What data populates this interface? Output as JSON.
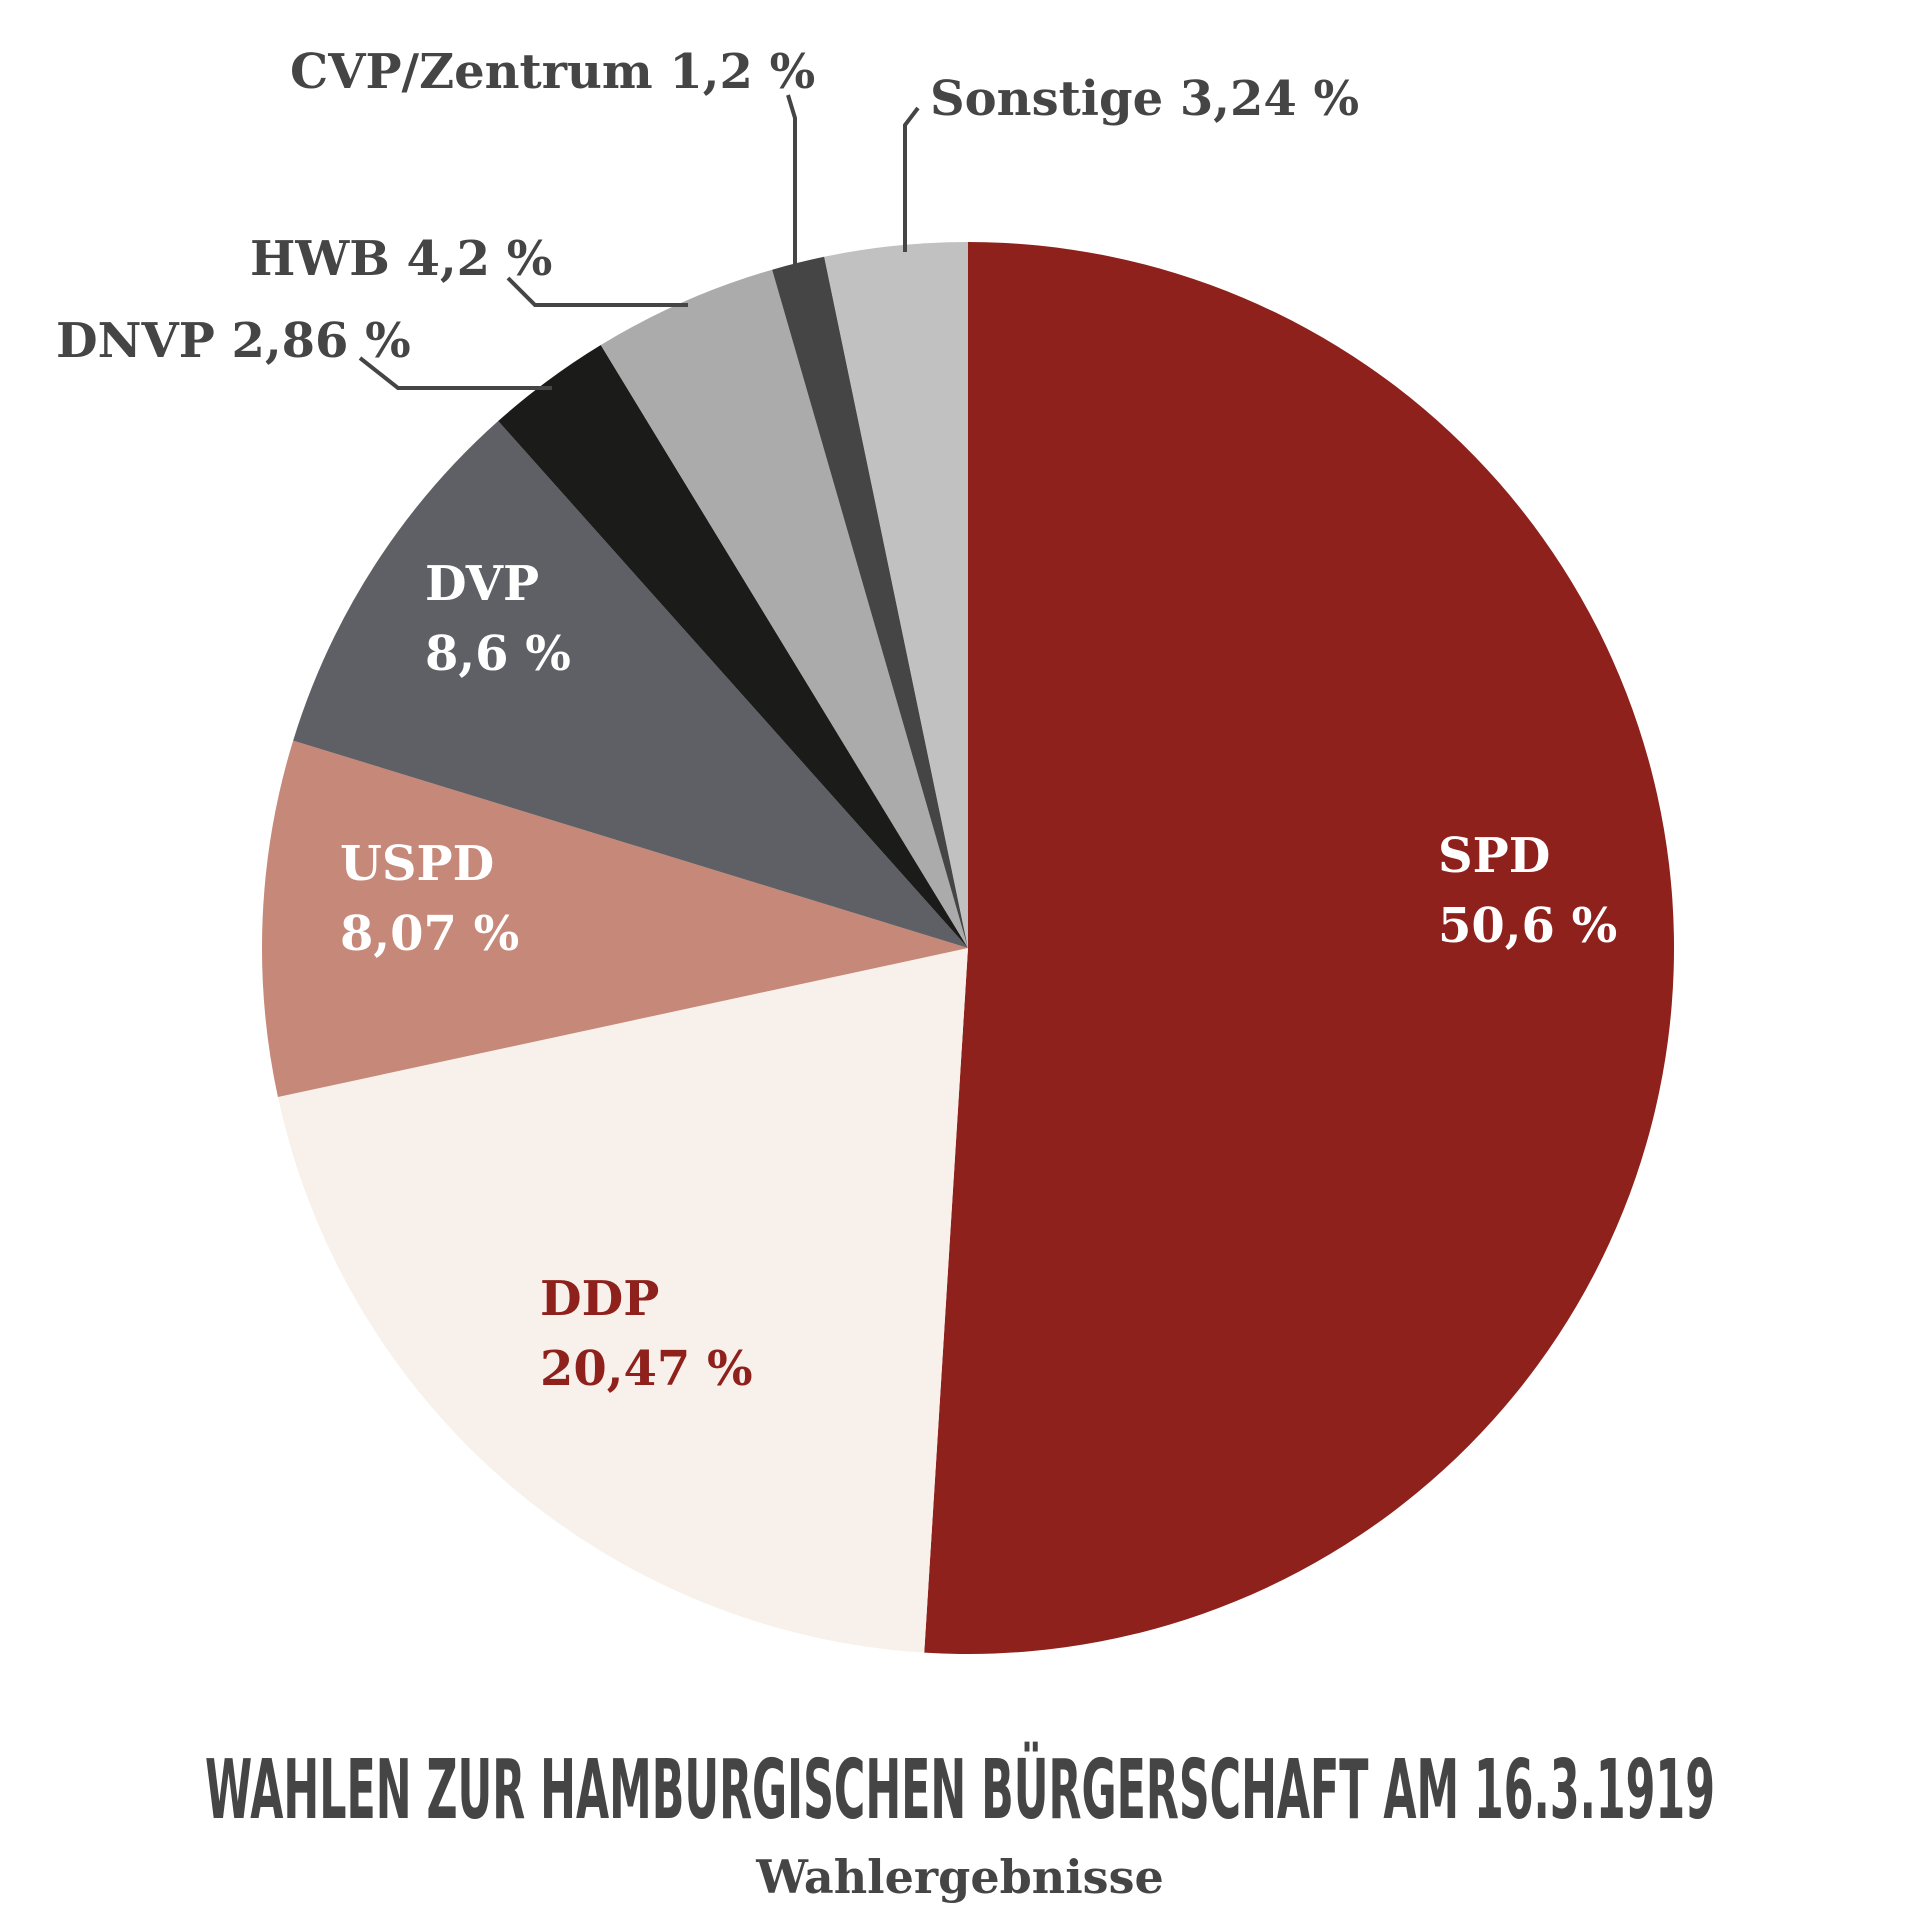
{
  "chart_data": {
    "type": "pie",
    "title": "WAHLEN ZUR HAMBURGISCHEN BÜRGERSCHAFT AM 16.3.1919",
    "subtitle": "Wahlergebnisse",
    "slices": [
      {
        "name": "SPD",
        "value": 50.6,
        "label_text": "50,6 %",
        "color": "#8f211d",
        "label_color": "#ffffff",
        "label_mode": "inside"
      },
      {
        "name": "DDP",
        "value": 20.47,
        "label_text": "20,47 %",
        "color": "#f8f0ea",
        "label_color": "#8f211d",
        "label_mode": "inside"
      },
      {
        "name": "USPD",
        "value": 8.07,
        "label_text": "8,07 %",
        "color": "#c68878",
        "label_color": "#ffffff",
        "label_mode": "inside"
      },
      {
        "name": "DVP",
        "value": 8.6,
        "label_text": "8,6 %",
        "color": "#5f5f66",
        "label_color": "#ffffff",
        "label_mode": "inside"
      },
      {
        "name": "DNVP",
        "value": 2.86,
        "label_text": "2,86 %",
        "color": "#1b1b19",
        "label_color": "#454545",
        "label_mode": "outside"
      },
      {
        "name": "HWB",
        "value": 4.2,
        "label_text": "4,2 %",
        "color": "#ababab",
        "label_color": "#454545",
        "label_mode": "outside"
      },
      {
        "name": "CVP/Zentrum",
        "value": 1.2,
        "label_text": "1,2 %",
        "color": "#454545",
        "label_color": "#454545",
        "label_mode": "outside"
      },
      {
        "name": "Sonstige",
        "value": 3.24,
        "label_text": "3,24 %",
        "color": "#c1c1c1",
        "label_color": "#454545",
        "label_mode": "outside"
      }
    ],
    "start_angle": "12 o'clock",
    "direction": "clockwise",
    "legend": "none"
  }
}
